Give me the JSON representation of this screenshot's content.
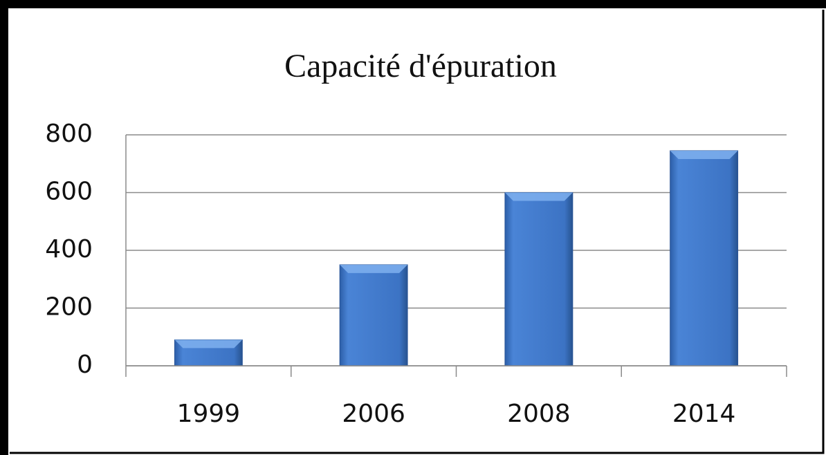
{
  "chart_data": {
    "type": "bar",
    "title": "Capacité d'épuration",
    "categories": [
      "1999",
      "2006",
      "2008",
      "2014"
    ],
    "values": [
      90,
      350,
      600,
      745
    ],
    "color": "#3f76c8",
    "ylim": [
      0,
      800
    ],
    "yticks": [
      0,
      200,
      400,
      600,
      800
    ],
    "grid": true
  }
}
